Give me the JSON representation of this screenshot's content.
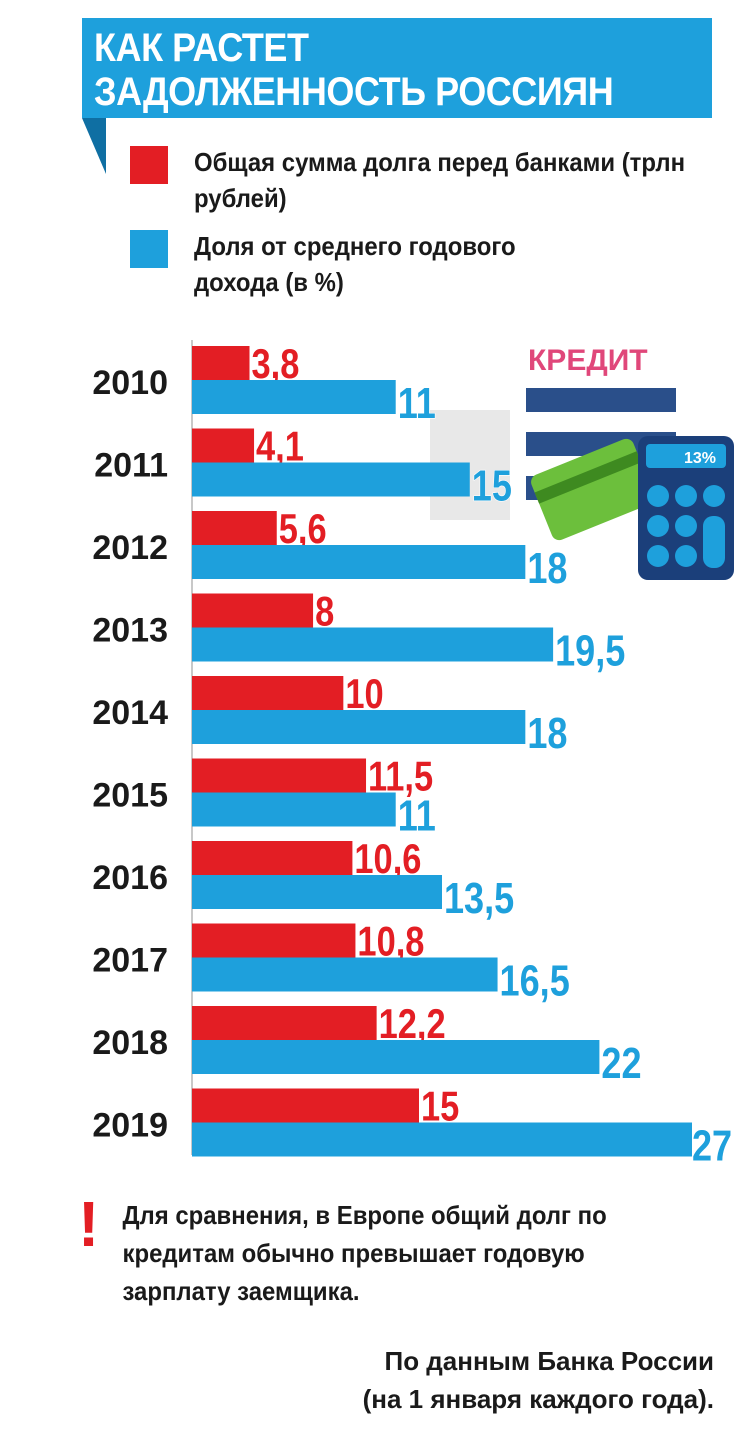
{
  "header": {
    "title": "КАК РАСТЕТ ЗАДОЛЖЕННОСТЬ РОССИЯН"
  },
  "legend": {
    "debt_label": "Общая сумма долга перед банками (трлн рублей)",
    "share_label": "Доля от среднего годового дохода (в %)"
  },
  "illustration": {
    "word": "КРЕДИТ",
    "calc_display": "13%"
  },
  "colors": {
    "debt": "#e31e24",
    "share": "#1ea0dc",
    "banner": "#1ea0dc",
    "banner_tail": "#0f6fa3"
  },
  "chart_data": {
    "type": "bar",
    "orientation": "horizontal",
    "title": "КАК РАСТЕТ ЗАДОЛЖЕННОСТЬ РОССИЯН",
    "categories": [
      "2010",
      "2011",
      "2012",
      "2013",
      "2014",
      "2015",
      "2016",
      "2017",
      "2018",
      "2019"
    ],
    "series": [
      {
        "name": "Общая сумма долга перед банками (трлн рублей)",
        "color": "#e31e24",
        "values": [
          3.8,
          4.1,
          5.6,
          8,
          10,
          11.5,
          10.6,
          10.8,
          12.2,
          15
        ],
        "labels": [
          "3,8",
          "4,1",
          "5,6",
          "8",
          "10",
          "11,5",
          "10,6",
          "10,8",
          "12,2",
          "15"
        ]
      },
      {
        "name": "Доля от среднего годового дохода (в %)",
        "color": "#1ea0dc",
        "values": [
          11,
          15,
          18,
          19.5,
          18,
          11,
          13.5,
          16.5,
          22,
          27
        ],
        "labels": [
          "11",
          "15",
          "18",
          "19,5",
          "18",
          "11",
          "13,5",
          "16,5",
          "22",
          "27"
        ]
      }
    ],
    "legend": "top-left",
    "grid": false
  },
  "footer": {
    "note_mark": "!",
    "note": "Для сравнения, в Европе общий долг по кредитам обычно превышает годовую зарплату заемщика.",
    "source_line1": "По данным Банка России",
    "source_line2": "(на 1 января каждого года)."
  }
}
